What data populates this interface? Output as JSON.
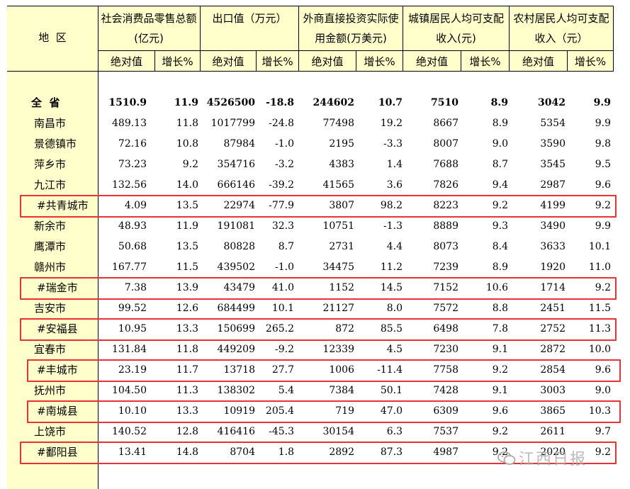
{
  "header": {
    "region": "地  区",
    "groups": [
      {
        "label": "社会消费品零售总额(亿元)"
      },
      {
        "label": "出口值（万元）"
      },
      {
        "label": "外商直接投资实际使用金额(万美元)"
      },
      {
        "label": "城镇居民人均可支配收入(元)"
      },
      {
        "label": "农村居民人均可支配收入（元）"
      }
    ],
    "abs": "绝对值",
    "growth": "增长%"
  },
  "rows": [
    {
      "name": "全  省",
      "v": [
        "1510.9",
        "11.9",
        "4526500",
        "-18.8",
        "244602",
        "10.7",
        "7510",
        "8.9",
        "3042",
        "9.9"
      ],
      "total": true
    },
    {
      "name": "南昌市",
      "v": [
        "489.13",
        "11.8",
        "1017799",
        "-24.8",
        "77498",
        "19.2",
        "8667",
        "8.9",
        "5354",
        "9.9"
      ]
    },
    {
      "name": "景德镇市",
      "v": [
        "72.16",
        "10.8",
        "87984",
        "-1.0",
        "2195",
        "-3.3",
        "8007",
        "9.0",
        "3590",
        "9.8"
      ]
    },
    {
      "name": "萍乡市",
      "v": [
        "73.23",
        "9.2",
        "354716",
        "-3.2",
        "4383",
        "1.4",
        "7688",
        "8.7",
        "3545",
        "9.5"
      ]
    },
    {
      "name": "九江市",
      "v": [
        "132.56",
        "14.0",
        "666146",
        "-39.2",
        "41565",
        "3.6",
        "7826",
        "9.4",
        "2987",
        "9.6"
      ]
    },
    {
      "name": "#共青城市",
      "v": [
        "4.09",
        "13.5",
        "22974",
        "-77.9",
        "3807",
        "98.2",
        "8223",
        "9.2",
        "4199",
        "9.2"
      ],
      "highlight": true
    },
    {
      "name": "新余市",
      "v": [
        "48.93",
        "11.9",
        "191081",
        "32.3",
        "10751",
        "-1.3",
        "8889",
        "9.3",
        "3490",
        "9.9"
      ]
    },
    {
      "name": "鹰潭市",
      "v": [
        "50.68",
        "13.5",
        "80828",
        "8.7",
        "2731",
        "4.4",
        "8073",
        "8.4",
        "3633",
        "10.1"
      ]
    },
    {
      "name": "赣州市",
      "v": [
        "167.77",
        "11.5",
        "439502",
        "-1.0",
        "34475",
        "11.2",
        "7239",
        "8.9",
        "1920",
        "11.0"
      ]
    },
    {
      "name": "#瑞金市",
      "v": [
        "7.38",
        "13.9",
        "43479",
        "41.0",
        "1152",
        "14.5",
        "7152",
        "10.6",
        "1714",
        "9.2"
      ],
      "highlight": true
    },
    {
      "name": "吉安市",
      "v": [
        "99.52",
        "12.6",
        "684499",
        "10.1",
        "21127",
        "8.0",
        "7572",
        "8.8",
        "2451",
        "11.5"
      ]
    },
    {
      "name": "#安福县",
      "v": [
        "10.95",
        "13.3",
        "150699",
        "265.2",
        "872",
        "85.5",
        "6498",
        "7.8",
        "2752",
        "11.3"
      ],
      "highlight": true
    },
    {
      "name": "宜春市",
      "v": [
        "131.84",
        "11.8",
        "449209",
        "-9.2",
        "12339",
        "4.5",
        "7230",
        "9.1",
        "2872",
        "10.0"
      ]
    },
    {
      "name": "#丰城市",
      "v": [
        "23.19",
        "11.7",
        "13718",
        "27.7",
        "1006",
        "-11.4",
        "7758",
        "9.2",
        "2854",
        "9.6"
      ],
      "highlight": true
    },
    {
      "name": "抚州市",
      "v": [
        "104.50",
        "11.3",
        "138302",
        "5.4",
        "7384",
        "50.1",
        "7428",
        "9.1",
        "3003",
        "9.0"
      ]
    },
    {
      "name": "#南城县",
      "v": [
        "10.10",
        "13.3",
        "10919",
        "205.4",
        "719",
        "47.0",
        "6309",
        "9.6",
        "3865",
        "10.3"
      ],
      "highlight": true
    },
    {
      "name": "上饶市",
      "v": [
        "140.52",
        "12.8",
        "416416",
        "-45.3",
        "30154",
        "6.3",
        "7537",
        "9.2",
        "2611",
        "9.7"
      ]
    },
    {
      "name": "#鄱阳县",
      "v": [
        "13.41",
        "14.8",
        "8704",
        "1.8",
        "2892",
        "87.3",
        "4987",
        "9.2",
        "2020",
        "9.2"
      ],
      "highlight": true
    }
  ],
  "watermark": "江西日报"
}
